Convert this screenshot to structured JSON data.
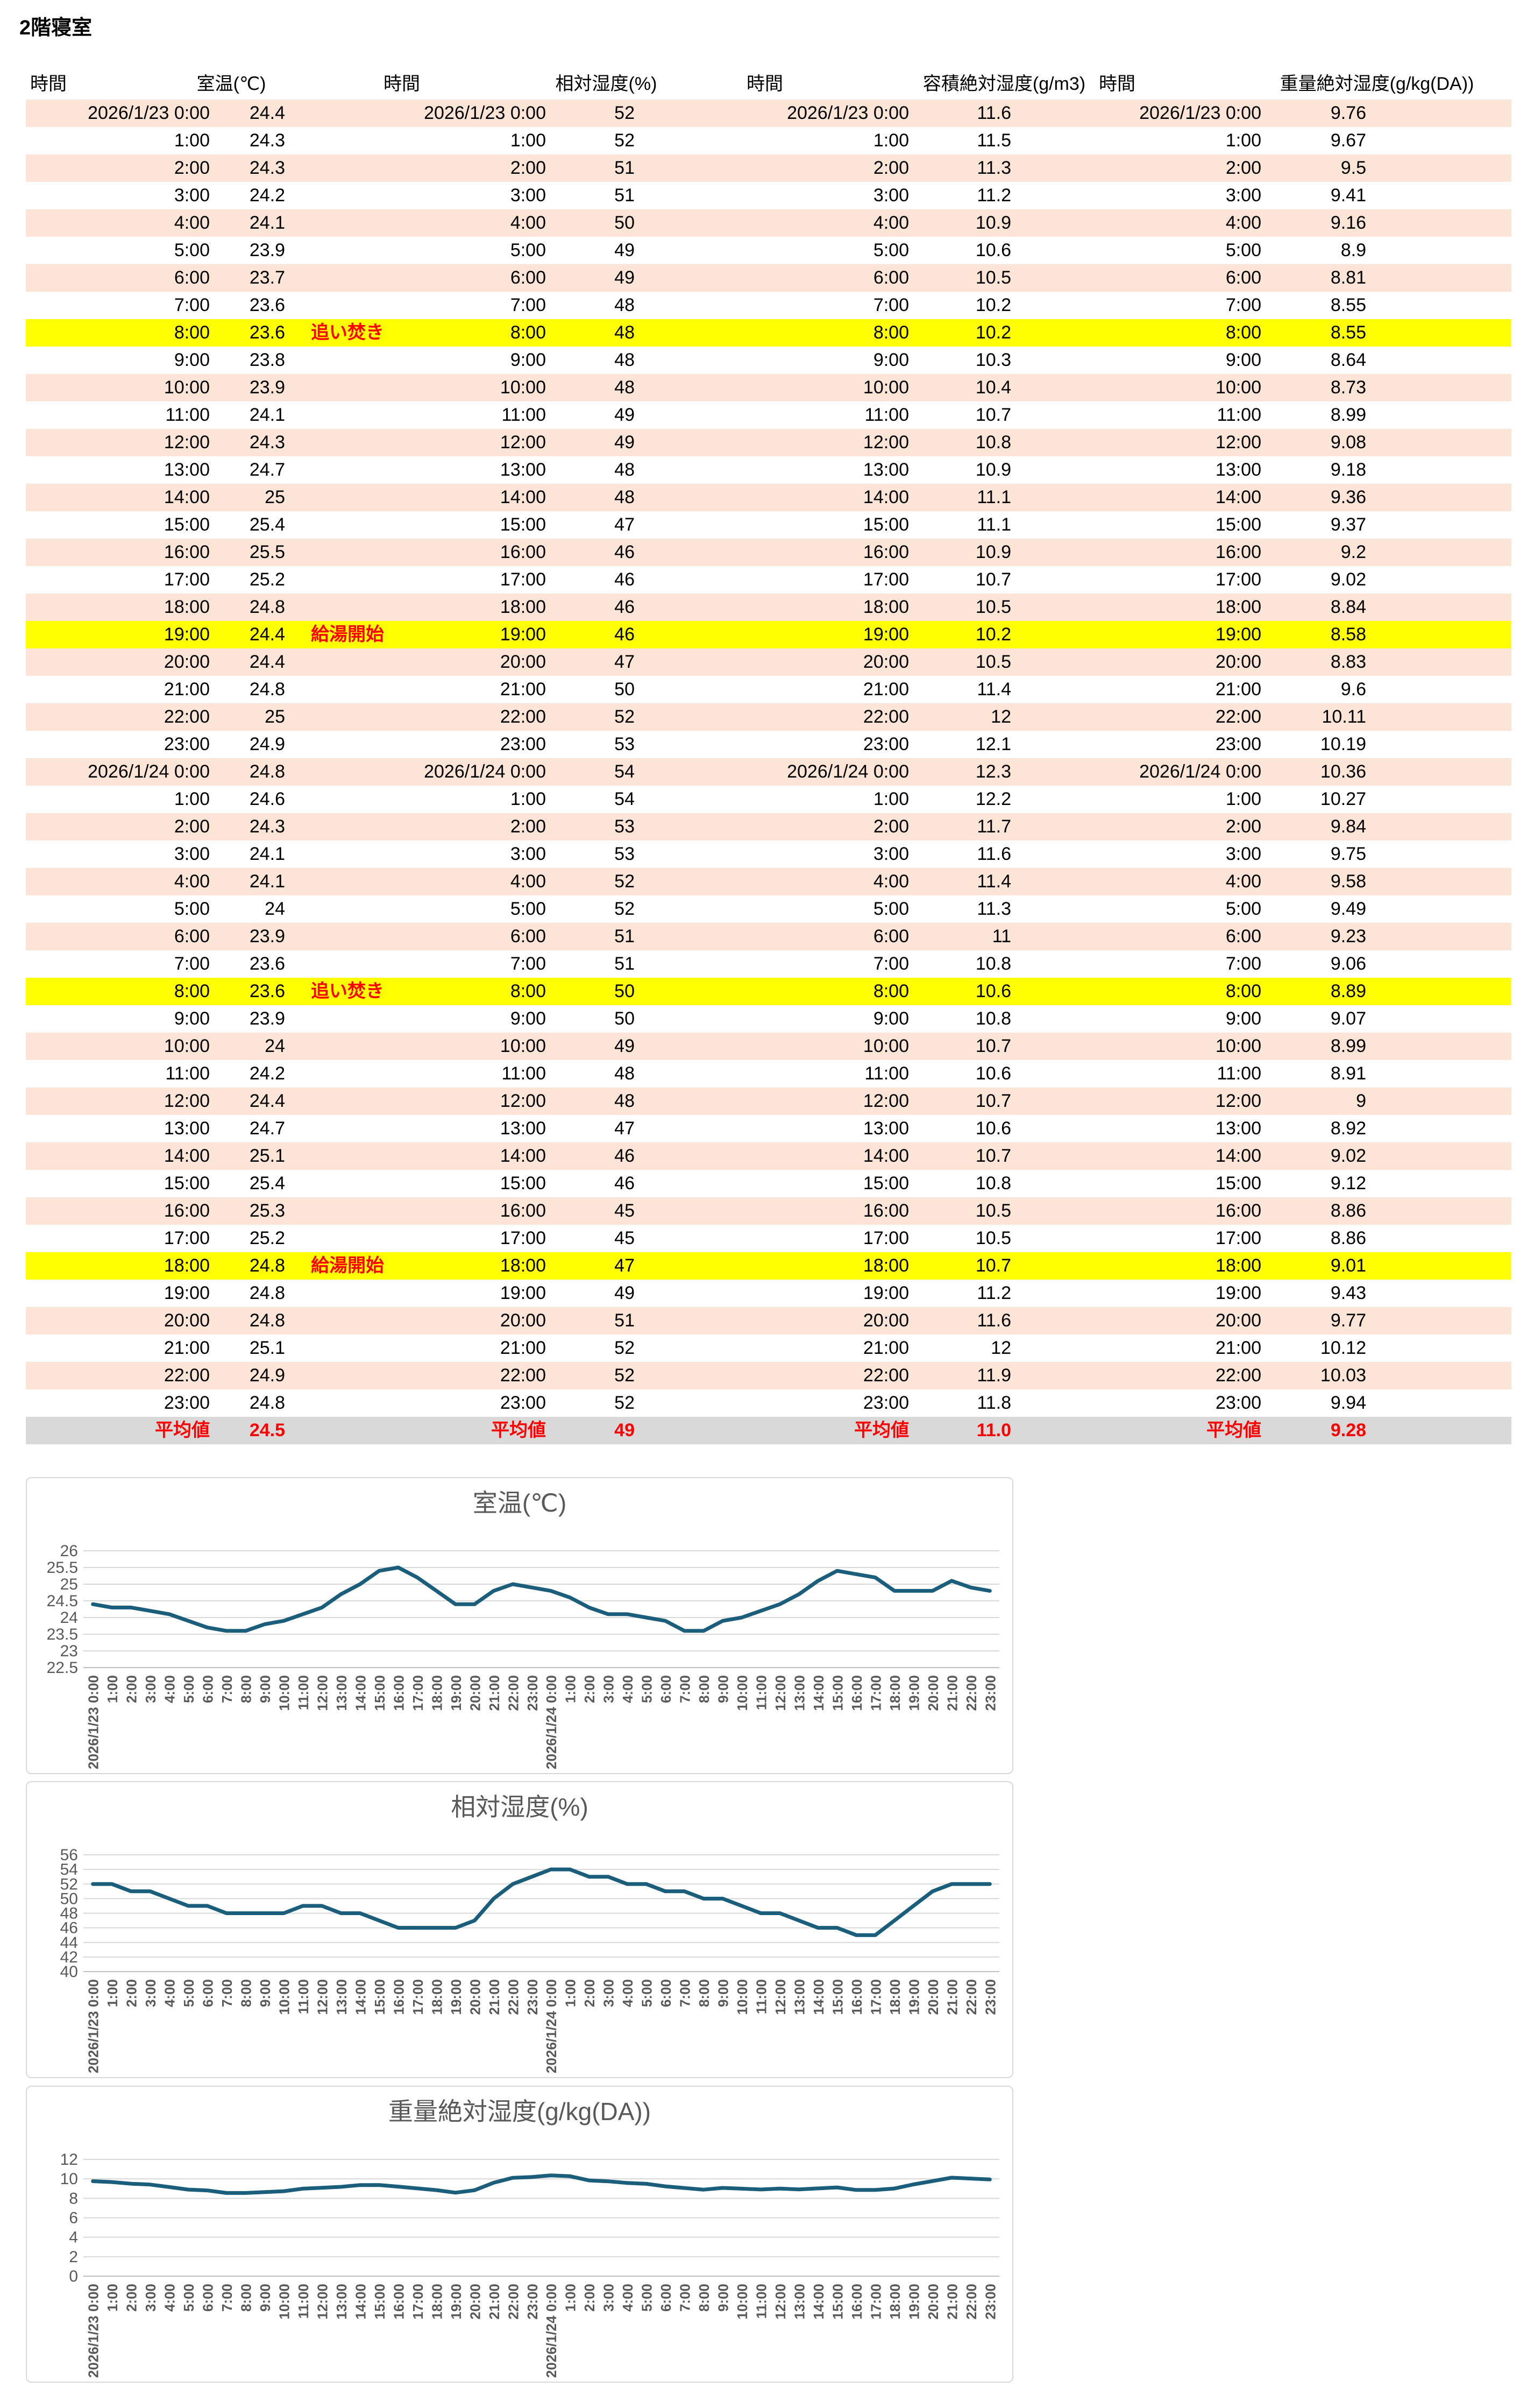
{
  "page_title": "2階寝室",
  "colors": {
    "stripe_pink": "#fce4d6",
    "highlight_yellow": "#ffff00",
    "average_gray": "#d9d9d9",
    "accent_red": "#ff0000",
    "chart_line": "#1b5e7b",
    "chart_grid": "#d9d9d9",
    "chart_axis": "#bfbfbf",
    "chart_text": "#595959"
  },
  "table": {
    "groups": [
      {
        "time_header": "時間",
        "value_header": "室温(℃)"
      },
      {
        "time_header": "時間",
        "value_header": "相対湿度(%)"
      },
      {
        "time_header": "時間",
        "value_header": "容積絶対湿度(g/m3)"
      },
      {
        "time_header": "時間",
        "value_header": "重量絶対湿度(g/kg(DA))"
      }
    ],
    "average_label": "平均値",
    "averages": [
      "24.5",
      "49",
      "11.0",
      "9.28"
    ],
    "rows": [
      {
        "t": "2026/1/23 0:00",
        "v1": "24.4",
        "v2": "52",
        "v3": "11.6",
        "v4": "9.76",
        "note": "",
        "hl": false
      },
      {
        "t": "1:00",
        "v1": "24.3",
        "v2": "52",
        "v3": "11.5",
        "v4": "9.67",
        "note": "",
        "hl": false
      },
      {
        "t": "2:00",
        "v1": "24.3",
        "v2": "51",
        "v3": "11.3",
        "v4": "9.5",
        "note": "",
        "hl": false
      },
      {
        "t": "3:00",
        "v1": "24.2",
        "v2": "51",
        "v3": "11.2",
        "v4": "9.41",
        "note": "",
        "hl": false
      },
      {
        "t": "4:00",
        "v1": "24.1",
        "v2": "50",
        "v3": "10.9",
        "v4": "9.16",
        "note": "",
        "hl": false
      },
      {
        "t": "5:00",
        "v1": "23.9",
        "v2": "49",
        "v3": "10.6",
        "v4": "8.9",
        "note": "",
        "hl": false
      },
      {
        "t": "6:00",
        "v1": "23.7",
        "v2": "49",
        "v3": "10.5",
        "v4": "8.81",
        "note": "",
        "hl": false
      },
      {
        "t": "7:00",
        "v1": "23.6",
        "v2": "48",
        "v3": "10.2",
        "v4": "8.55",
        "note": "",
        "hl": false
      },
      {
        "t": "8:00",
        "v1": "23.6",
        "v2": "48",
        "v3": "10.2",
        "v4": "8.55",
        "note": "追い焚き",
        "hl": true
      },
      {
        "t": "9:00",
        "v1": "23.8",
        "v2": "48",
        "v3": "10.3",
        "v4": "8.64",
        "note": "",
        "hl": false
      },
      {
        "t": "10:00",
        "v1": "23.9",
        "v2": "48",
        "v3": "10.4",
        "v4": "8.73",
        "note": "",
        "hl": false
      },
      {
        "t": "11:00",
        "v1": "24.1",
        "v2": "49",
        "v3": "10.7",
        "v4": "8.99",
        "note": "",
        "hl": false
      },
      {
        "t": "12:00",
        "v1": "24.3",
        "v2": "49",
        "v3": "10.8",
        "v4": "9.08",
        "note": "",
        "hl": false
      },
      {
        "t": "13:00",
        "v1": "24.7",
        "v2": "48",
        "v3": "10.9",
        "v4": "9.18",
        "note": "",
        "hl": false
      },
      {
        "t": "14:00",
        "v1": "25",
        "v2": "48",
        "v3": "11.1",
        "v4": "9.36",
        "note": "",
        "hl": false
      },
      {
        "t": "15:00",
        "v1": "25.4",
        "v2": "47",
        "v3": "11.1",
        "v4": "9.37",
        "note": "",
        "hl": false
      },
      {
        "t": "16:00",
        "v1": "25.5",
        "v2": "46",
        "v3": "10.9",
        "v4": "9.2",
        "note": "",
        "hl": false
      },
      {
        "t": "17:00",
        "v1": "25.2",
        "v2": "46",
        "v3": "10.7",
        "v4": "9.02",
        "note": "",
        "hl": false
      },
      {
        "t": "18:00",
        "v1": "24.8",
        "v2": "46",
        "v3": "10.5",
        "v4": "8.84",
        "note": "",
        "hl": false
      },
      {
        "t": "19:00",
        "v1": "24.4",
        "v2": "46",
        "v3": "10.2",
        "v4": "8.58",
        "note": "給湯開始",
        "hl": true
      },
      {
        "t": "20:00",
        "v1": "24.4",
        "v2": "47",
        "v3": "10.5",
        "v4": "8.83",
        "note": "",
        "hl": false
      },
      {
        "t": "21:00",
        "v1": "24.8",
        "v2": "50",
        "v3": "11.4",
        "v4": "9.6",
        "note": "",
        "hl": false
      },
      {
        "t": "22:00",
        "v1": "25",
        "v2": "52",
        "v3": "12",
        "v4": "10.11",
        "note": "",
        "hl": false
      },
      {
        "t": "23:00",
        "v1": "24.9",
        "v2": "53",
        "v3": "12.1",
        "v4": "10.19",
        "note": "",
        "hl": false
      },
      {
        "t": "2026/1/24 0:00",
        "v1": "24.8",
        "v2": "54",
        "v3": "12.3",
        "v4": "10.36",
        "note": "",
        "hl": false
      },
      {
        "t": "1:00",
        "v1": "24.6",
        "v2": "54",
        "v3": "12.2",
        "v4": "10.27",
        "note": "",
        "hl": false
      },
      {
        "t": "2:00",
        "v1": "24.3",
        "v2": "53",
        "v3": "11.7",
        "v4": "9.84",
        "note": "",
        "hl": false
      },
      {
        "t": "3:00",
        "v1": "24.1",
        "v2": "53",
        "v3": "11.6",
        "v4": "9.75",
        "note": "",
        "hl": false
      },
      {
        "t": "4:00",
        "v1": "24.1",
        "v2": "52",
        "v3": "11.4",
        "v4": "9.58",
        "note": "",
        "hl": false
      },
      {
        "t": "5:00",
        "v1": "24",
        "v2": "52",
        "v3": "11.3",
        "v4": "9.49",
        "note": "",
        "hl": false
      },
      {
        "t": "6:00",
        "v1": "23.9",
        "v2": "51",
        "v3": "11",
        "v4": "9.23",
        "note": "",
        "hl": false
      },
      {
        "t": "7:00",
        "v1": "23.6",
        "v2": "51",
        "v3": "10.8",
        "v4": "9.06",
        "note": "",
        "hl": false
      },
      {
        "t": "8:00",
        "v1": "23.6",
        "v2": "50",
        "v3": "10.6",
        "v4": "8.89",
        "note": "追い焚き",
        "hl": true
      },
      {
        "t": "9:00",
        "v1": "23.9",
        "v2": "50",
        "v3": "10.8",
        "v4": "9.07",
        "note": "",
        "hl": false
      },
      {
        "t": "10:00",
        "v1": "24",
        "v2": "49",
        "v3": "10.7",
        "v4": "8.99",
        "note": "",
        "hl": false
      },
      {
        "t": "11:00",
        "v1": "24.2",
        "v2": "48",
        "v3": "10.6",
        "v4": "8.91",
        "note": "",
        "hl": false
      },
      {
        "t": "12:00",
        "v1": "24.4",
        "v2": "48",
        "v3": "10.7",
        "v4": "9",
        "note": "",
        "hl": false
      },
      {
        "t": "13:00",
        "v1": "24.7",
        "v2": "47",
        "v3": "10.6",
        "v4": "8.92",
        "note": "",
        "hl": false
      },
      {
        "t": "14:00",
        "v1": "25.1",
        "v2": "46",
        "v3": "10.7",
        "v4": "9.02",
        "note": "",
        "hl": false
      },
      {
        "t": "15:00",
        "v1": "25.4",
        "v2": "46",
        "v3": "10.8",
        "v4": "9.12",
        "note": "",
        "hl": false
      },
      {
        "t": "16:00",
        "v1": "25.3",
        "v2": "45",
        "v3": "10.5",
        "v4": "8.86",
        "note": "",
        "hl": false
      },
      {
        "t": "17:00",
        "v1": "25.2",
        "v2": "45",
        "v3": "10.5",
        "v4": "8.86",
        "note": "",
        "hl": false
      },
      {
        "t": "18:00",
        "v1": "24.8",
        "v2": "47",
        "v3": "10.7",
        "v4": "9.01",
        "note": "給湯開始",
        "hl": true
      },
      {
        "t": "19:00",
        "v1": "24.8",
        "v2": "49",
        "v3": "11.2",
        "v4": "9.43",
        "note": "",
        "hl": false
      },
      {
        "t": "20:00",
        "v1": "24.8",
        "v2": "51",
        "v3": "11.6",
        "v4": "9.77",
        "note": "",
        "hl": false
      },
      {
        "t": "21:00",
        "v1": "25.1",
        "v2": "52",
        "v3": "12",
        "v4": "10.12",
        "note": "",
        "hl": false
      },
      {
        "t": "22:00",
        "v1": "24.9",
        "v2": "52",
        "v3": "11.9",
        "v4": "10.03",
        "note": "",
        "hl": false
      },
      {
        "t": "23:00",
        "v1": "24.8",
        "v2": "52",
        "v3": "11.8",
        "v4": "9.94",
        "note": "",
        "hl": false
      }
    ]
  },
  "chart_data": [
    {
      "type": "line",
      "title": "室温(℃)",
      "ylim": [
        22.5,
        26
      ],
      "ytick": 0.5,
      "legend": "none",
      "grid": true,
      "categories": [
        "2026/1/23 0:00",
        "1:00",
        "2:00",
        "3:00",
        "4:00",
        "5:00",
        "6:00",
        "7:00",
        "8:00",
        "9:00",
        "10:00",
        "11:00",
        "12:00",
        "13:00",
        "14:00",
        "15:00",
        "16:00",
        "17:00",
        "18:00",
        "19:00",
        "20:00",
        "21:00",
        "22:00",
        "23:00",
        "2026/1/24 0:00",
        "1:00",
        "2:00",
        "3:00",
        "4:00",
        "5:00",
        "6:00",
        "7:00",
        "8:00",
        "9:00",
        "10:00",
        "11:00",
        "12:00",
        "13:00",
        "14:00",
        "15:00",
        "16:00",
        "17:00",
        "18:00",
        "19:00",
        "20:00",
        "21:00",
        "22:00",
        "23:00"
      ],
      "values": [
        24.4,
        24.3,
        24.3,
        24.2,
        24.1,
        23.9,
        23.7,
        23.6,
        23.6,
        23.8,
        23.9,
        24.1,
        24.3,
        24.7,
        25,
        25.4,
        25.5,
        25.2,
        24.8,
        24.4,
        24.4,
        24.8,
        25,
        24.9,
        24.8,
        24.6,
        24.3,
        24.1,
        24.1,
        24,
        23.9,
        23.6,
        23.6,
        23.9,
        24,
        24.2,
        24.4,
        24.7,
        25.1,
        25.4,
        25.3,
        25.2,
        24.8,
        24.8,
        24.8,
        25.1,
        24.9,
        24.8
      ]
    },
    {
      "type": "line",
      "title": "相対湿度(%)",
      "ylim": [
        40,
        56
      ],
      "ytick": 2,
      "legend": "none",
      "grid": true,
      "categories": [
        "2026/1/23 0:00",
        "1:00",
        "2:00",
        "3:00",
        "4:00",
        "5:00",
        "6:00",
        "7:00",
        "8:00",
        "9:00",
        "10:00",
        "11:00",
        "12:00",
        "13:00",
        "14:00",
        "15:00",
        "16:00",
        "17:00",
        "18:00",
        "19:00",
        "20:00",
        "21:00",
        "22:00",
        "23:00",
        "2026/1/24 0:00",
        "1:00",
        "2:00",
        "3:00",
        "4:00",
        "5:00",
        "6:00",
        "7:00",
        "8:00",
        "9:00",
        "10:00",
        "11:00",
        "12:00",
        "13:00",
        "14:00",
        "15:00",
        "16:00",
        "17:00",
        "18:00",
        "19:00",
        "20:00",
        "21:00",
        "22:00",
        "23:00"
      ],
      "values": [
        52,
        52,
        51,
        51,
        50,
        49,
        49,
        48,
        48,
        48,
        48,
        49,
        49,
        48,
        48,
        47,
        46,
        46,
        46,
        46,
        47,
        50,
        52,
        53,
        54,
        54,
        53,
        53,
        52,
        52,
        51,
        51,
        50,
        50,
        49,
        48,
        48,
        47,
        46,
        46,
        45,
        45,
        47,
        49,
        51,
        52,
        52,
        52
      ]
    },
    {
      "type": "line",
      "title": "重量絶対湿度(g/kg(DA))",
      "ylim": [
        0,
        12
      ],
      "ytick": 2,
      "legend": "none",
      "grid": true,
      "categories": [
        "2026/1/23 0:00",
        "1:00",
        "2:00",
        "3:00",
        "4:00",
        "5:00",
        "6:00",
        "7:00",
        "8:00",
        "9:00",
        "10:00",
        "11:00",
        "12:00",
        "13:00",
        "14:00",
        "15:00",
        "16:00",
        "17:00",
        "18:00",
        "19:00",
        "20:00",
        "21:00",
        "22:00",
        "23:00",
        "2026/1/24 0:00",
        "1:00",
        "2:00",
        "3:00",
        "4:00",
        "5:00",
        "6:00",
        "7:00",
        "8:00",
        "9:00",
        "10:00",
        "11:00",
        "12:00",
        "13:00",
        "14:00",
        "15:00",
        "16:00",
        "17:00",
        "18:00",
        "19:00",
        "20:00",
        "21:00",
        "22:00",
        "23:00"
      ],
      "values": [
        9.76,
        9.67,
        9.5,
        9.41,
        9.16,
        8.9,
        8.81,
        8.55,
        8.55,
        8.64,
        8.73,
        8.99,
        9.08,
        9.18,
        9.36,
        9.37,
        9.2,
        9.02,
        8.84,
        8.58,
        8.83,
        9.6,
        10.11,
        10.19,
        10.36,
        10.27,
        9.84,
        9.75,
        9.58,
        9.49,
        9.23,
        9.06,
        8.89,
        9.07,
        8.99,
        8.91,
        9,
        8.92,
        9.02,
        9.12,
        8.86,
        8.86,
        9.01,
        9.43,
        9.77,
        10.12,
        10.03,
        9.94
      ]
    }
  ]
}
